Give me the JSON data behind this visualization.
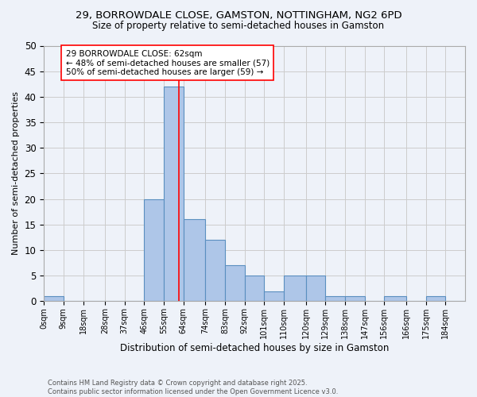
{
  "title_line1": "29, BORROWDALE CLOSE, GAMSTON, NOTTINGHAM, NG2 6PD",
  "title_line2": "Size of property relative to semi-detached houses in Gamston",
  "xlabel": "Distribution of semi-detached houses by size in Gamston",
  "ylabel": "Number of semi-detached properties",
  "footer_line1": "Contains HM Land Registry data © Crown copyright and database right 2025.",
  "footer_line2": "Contains public sector information licensed under the Open Government Licence v3.0.",
  "bin_labels": [
    "0sqm",
    "9sqm",
    "18sqm",
    "28sqm",
    "37sqm",
    "46sqm",
    "55sqm",
    "64sqm",
    "74sqm",
    "83sqm",
    "92sqm",
    "101sqm",
    "110sqm",
    "120sqm",
    "129sqm",
    "138sqm",
    "147sqm",
    "156sqm",
    "166sqm",
    "175sqm",
    "184sqm"
  ],
  "bin_edges": [
    0,
    9,
    18,
    28,
    37,
    46,
    55,
    64,
    74,
    83,
    92,
    101,
    110,
    120,
    129,
    138,
    147,
    156,
    166,
    175,
    184,
    193
  ],
  "counts": [
    1,
    0,
    0,
    0,
    0,
    20,
    42,
    16,
    12,
    7,
    5,
    2,
    5,
    5,
    1,
    1,
    0,
    1,
    0,
    1,
    0
  ],
  "bar_facecolor": "#aec6e8",
  "bar_edgecolor": "#5a8fc0",
  "grid_color": "#cccccc",
  "background_color": "#eef2f9",
  "vline_x": 62,
  "vline_color": "red",
  "annotation_text": "29 BORROWDALE CLOSE: 62sqm\n← 48% of semi-detached houses are smaller (57)\n50% of semi-detached houses are larger (59) →",
  "annotation_box_edgecolor": "red",
  "annotation_box_facecolor": "white",
  "ylim": [
    0,
    50
  ],
  "yticks": [
    0,
    5,
    10,
    15,
    20,
    25,
    30,
    35,
    40,
    45,
    50
  ]
}
